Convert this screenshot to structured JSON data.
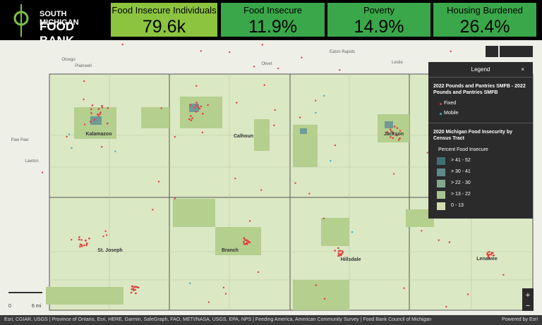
{
  "header": {
    "logo": {
      "line1": "SOUTH MICHIGAN",
      "line2": "FOOD BANK"
    },
    "cards": [
      {
        "label": "Food Insecure Individuals",
        "value": "79.6k"
      },
      {
        "label": "Food Insecure",
        "value": "11.9%"
      },
      {
        "label": "Poverty",
        "value": "14.9%"
      },
      {
        "label": "Housing Burdened",
        "value": "26.4%"
      }
    ]
  },
  "map": {
    "counties": [
      "Kalamazoo",
      "Calhoun",
      "Jackson",
      "St. Joseph",
      "Branch",
      "Hillsdale",
      "Lenawee"
    ],
    "places": [
      "Otsego",
      "Plainwell",
      "Olivet",
      "Leslie",
      "Paw Paw",
      "Lawton",
      "Eaton Rapids"
    ],
    "scale": {
      "start": "0",
      "end": "6 mi"
    },
    "attribution": "Esri, CGIAR, USGS | Province of Ontario, Esri, HERE, Garmin, SafeGraph, FAO, METI/NASA, USGS, EPA, NPS | Feeding America, American Community Survey | Food Bank Council of Michigan",
    "powered": "Powered by Esri"
  },
  "legend": {
    "title": "Legend",
    "close": "×",
    "layer1": {
      "title": "2022 Pounds and Pantries SMFB - 2022 Pounds and Pantries SMFB",
      "items": [
        "Fixed",
        "Mobile"
      ]
    },
    "layer2": {
      "title": "2020 Michigan Food Insecurity by Census Tract",
      "subtitle": "Percent Food Insecure",
      "items": [
        "> 41 - 52",
        "> 30 - 41",
        "> 22 - 30",
        "> 13 - 22",
        "0 - 13"
      ]
    }
  }
}
